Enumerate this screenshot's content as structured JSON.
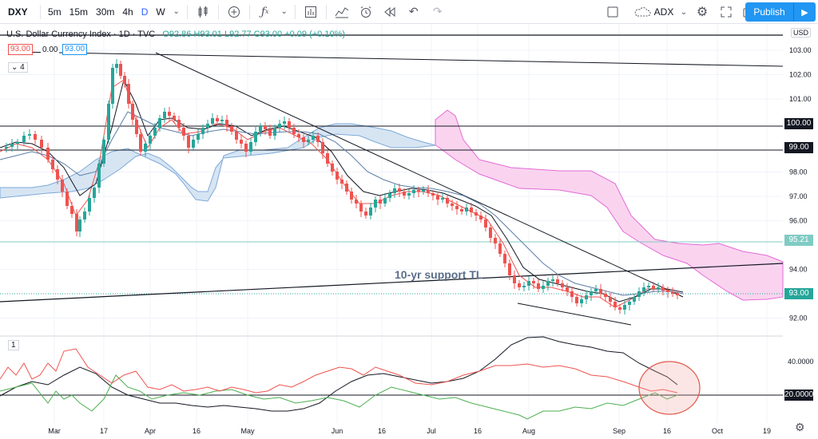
{
  "toolbar": {
    "symbol": "DXY",
    "intervals": [
      "5m",
      "15m",
      "30m",
      "4h",
      "D",
      "W"
    ],
    "active_interval": "D",
    "icons": [
      "chevron-down-icon",
      "candles-icon",
      "add-compare-icon",
      "fx-indicators-icon",
      "templates-icon",
      "chart-type-icon",
      "alert-icon",
      "replay-icon",
      "undo-icon",
      "redo-icon"
    ],
    "indicator_label": "ADX",
    "publish_label": "Publish"
  },
  "legend": {
    "title": "U.S. Dollar Currency Index · 1D · TVC",
    "ohlc": "O92.86 H93.01 L92.77 C93.00 +0.09 (+0.10%)",
    "bid": "93.00",
    "spread": "0.00",
    "ask": "93.00",
    "indicator_count": "4",
    "pane_number": "1"
  },
  "currency": "USD",
  "annotation": "10-yr support TL",
  "price_labels": [
    {
      "text": "103.00",
      "value": 103.0
    },
    {
      "text": "102.00",
      "value": 102.0
    },
    {
      "text": "101.00",
      "value": 101.0
    },
    {
      "text": "98.00",
      "value": 98.0
    },
    {
      "text": "97.00",
      "value": 97.0
    },
    {
      "text": "96.00",
      "value": 96.0
    },
    {
      "text": "94.00",
      "value": 94.0
    },
    {
      "text": "92.00",
      "value": 92.0
    }
  ],
  "price_tags": [
    {
      "text": "100.00",
      "value": 100.0
    },
    {
      "text": "99.00",
      "value": 99.0
    },
    {
      "text": "95.21",
      "value": 95.21
    },
    {
      "text": "93.00",
      "value": 93.0
    }
  ],
  "indicator_labels": [
    {
      "text": "40.0000"
    }
  ],
  "indicator_tag": "20.0000",
  "time_labels": [
    "Mar",
    "17",
    "Apr",
    "16",
    "May",
    "Jun",
    "16",
    "Jul",
    "16",
    "Aug",
    "Sep",
    "16",
    "Oct",
    "19"
  ],
  "colors": {
    "up": "#26a69a",
    "down": "#ef5350",
    "accent": "#2196f3",
    "cloud_bear": "#f8c8ee",
    "cloud_bull": "#c6dcee"
  }
}
